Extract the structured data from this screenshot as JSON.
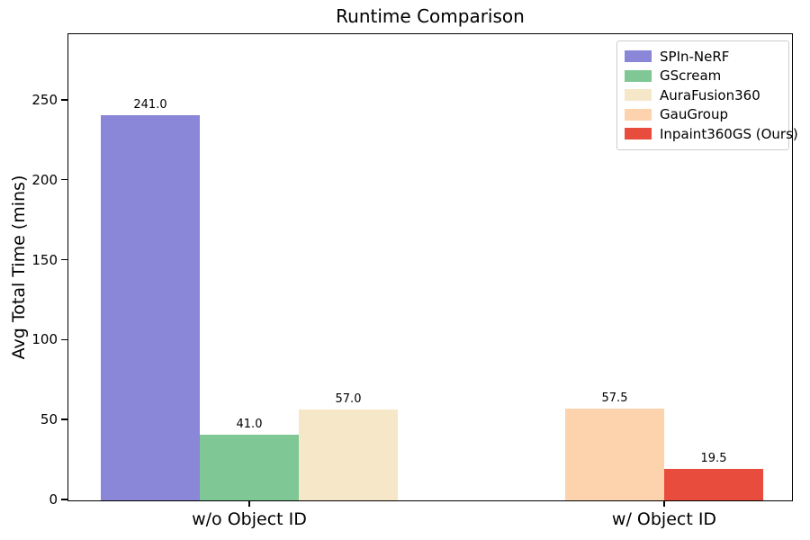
{
  "chart_data": {
    "type": "bar",
    "title": "Runtime Comparison",
    "xlabel": "",
    "ylabel": "Avg Total Time (mins)",
    "categories": [
      "w/o Object ID",
      "w/ Object ID"
    ],
    "ylim": [
      0,
      291
    ],
    "yticks": [
      0,
      50,
      100,
      150,
      200,
      250
    ],
    "grid": false,
    "legend_position": "upper right",
    "background_color": "#ffffff",
    "axis_color": "#000000",
    "series": [
      {
        "name": "SPIn-NeRF",
        "color": "#8a86d8",
        "values": [
          241.0,
          null
        ],
        "labels": [
          "241.0",
          null
        ]
      },
      {
        "name": "GScream",
        "color": "#7fc896",
        "values": [
          41.0,
          null
        ],
        "labels": [
          "41.0",
          null
        ]
      },
      {
        "name": "AuraFusion360",
        "color": "#f6e7c8",
        "values": [
          57.0,
          null
        ],
        "labels": [
          "57.0",
          null
        ]
      },
      {
        "name": "GauGroup",
        "color": "#fcd3ac",
        "values": [
          null,
          57.5
        ],
        "labels": [
          null,
          "57.5"
        ]
      },
      {
        "name": "Inpaint360GS (Ours)",
        "color": "#e74c3c",
        "values": [
          null,
          19.5
        ],
        "labels": [
          null,
          "19.5"
        ]
      }
    ]
  }
}
